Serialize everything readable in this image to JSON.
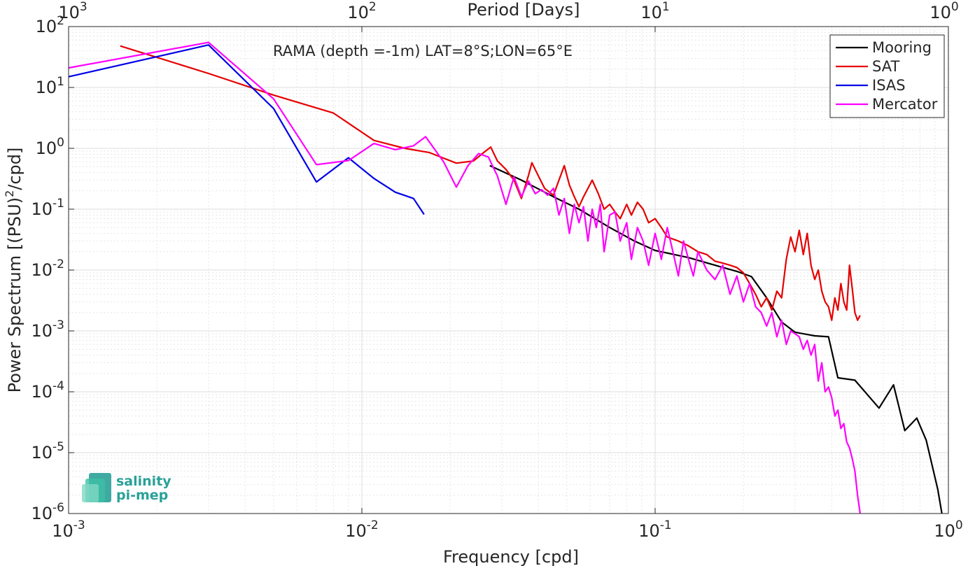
{
  "chart_data": {
    "type": "line",
    "title": "RAMA (depth =-1m) LAT=8°S;LON=65°E",
    "xlabel": "Frequency [cpd]",
    "ylabel_main": "Power Spectrum [(PSU)",
    "ylabel_sup": "2",
    "ylabel_tail": "/cpd]",
    "top_xlabel": "Period [Days]",
    "x_scale": "log",
    "y_scale": "log",
    "xlim": [
      0.001,
      1
    ],
    "ylim": [
      1e-06,
      100
    ],
    "x_ticks": [
      0.001,
      0.01,
      0.1,
      1
    ],
    "x_tick_base": [
      "10",
      "10",
      "10",
      "10"
    ],
    "x_tick_exp": [
      "-3",
      "-2",
      "-1",
      "0"
    ],
    "y_ticks": [
      1e-06,
      1e-05,
      0.0001,
      0.001,
      0.01,
      0.1,
      1,
      10,
      100
    ],
    "y_tick_base": [
      "10",
      "10",
      "10",
      "10",
      "10",
      "10",
      "10",
      "10",
      "10"
    ],
    "y_tick_exp": [
      "-6",
      "-5",
      "-4",
      "-3",
      "-2",
      "-1",
      "0",
      "1",
      "2"
    ],
    "top_ticks_freq": [
      0.001,
      0.01,
      0.1,
      1
    ],
    "top_tick_base": [
      "10",
      "10",
      "10",
      "10"
    ],
    "top_tick_exp": [
      "3",
      "2",
      "1",
      "0"
    ],
    "grid": true,
    "legend_position": "top-right",
    "series": [
      {
        "name": "Mooring",
        "color": "#000000",
        "points": [
          [
            0.0273,
            0.52
          ],
          [
            0.035,
            0.3
          ],
          [
            0.045,
            0.16
          ],
          [
            0.055,
            0.1
          ],
          [
            0.07,
            0.05
          ],
          [
            0.085,
            0.03
          ],
          [
            0.1,
            0.021
          ],
          [
            0.13,
            0.016
          ],
          [
            0.16,
            0.012
          ],
          [
            0.19,
            0.0095
          ],
          [
            0.213,
            0.0078
          ],
          [
            0.24,
            0.0035
          ],
          [
            0.27,
            0.0014
          ],
          [
            0.3,
            0.00095
          ],
          [
            0.35,
            0.00083
          ],
          [
            0.39,
            0.0008
          ],
          [
            0.42,
            0.00017
          ],
          [
            0.48,
            0.000155
          ],
          [
            0.58,
            5.4e-05
          ],
          [
            0.65,
            0.00013
          ],
          [
            0.71,
            2.3e-05
          ],
          [
            0.78,
            3.7e-05
          ],
          [
            0.84,
            1.6e-05
          ],
          [
            0.92,
            2.5e-06
          ],
          [
            0.95,
            1e-06
          ]
        ]
      },
      {
        "name": "SAT",
        "color": "#e60000",
        "points": [
          [
            0.0015,
            48
          ],
          [
            0.003,
            17
          ],
          [
            0.005,
            7.5
          ],
          [
            0.008,
            3.8
          ],
          [
            0.011,
            1.35
          ],
          [
            0.014,
            1.0
          ],
          [
            0.017,
            0.85
          ],
          [
            0.021,
            0.57
          ],
          [
            0.024,
            0.62
          ],
          [
            0.026,
            0.85
          ],
          [
            0.0275,
            1.05
          ],
          [
            0.029,
            0.62
          ],
          [
            0.031,
            0.45
          ],
          [
            0.033,
            0.3
          ],
          [
            0.035,
            0.15
          ],
          [
            0.037,
            0.36
          ],
          [
            0.038,
            0.58
          ],
          [
            0.04,
            0.35
          ],
          [
            0.042,
            0.22
          ],
          [
            0.045,
            0.17
          ],
          [
            0.047,
            0.3
          ],
          [
            0.049,
            0.52
          ],
          [
            0.051,
            0.25
          ],
          [
            0.053,
            0.16
          ],
          [
            0.055,
            0.11
          ],
          [
            0.057,
            0.16
          ],
          [
            0.059,
            0.22
          ],
          [
            0.061,
            0.3
          ],
          [
            0.064,
            0.18
          ],
          [
            0.067,
            0.1
          ],
          [
            0.07,
            0.12
          ],
          [
            0.073,
            0.09
          ],
          [
            0.076,
            0.07
          ],
          [
            0.08,
            0.12
          ],
          [
            0.083,
            0.08
          ],
          [
            0.087,
            0.13
          ],
          [
            0.091,
            0.1
          ],
          [
            0.095,
            0.06
          ],
          [
            0.1,
            0.07
          ],
          [
            0.105,
            0.05
          ],
          [
            0.11,
            0.035
          ],
          [
            0.12,
            0.03
          ],
          [
            0.13,
            0.025
          ],
          [
            0.14,
            0.02
          ],
          [
            0.15,
            0.018
          ],
          [
            0.16,
            0.014
          ],
          [
            0.17,
            0.013
          ],
          [
            0.18,
            0.012
          ],
          [
            0.19,
            0.011
          ],
          [
            0.2,
            0.009
          ],
          [
            0.21,
            0.006
          ],
          [
            0.22,
            0.004
          ],
          [
            0.23,
            0.0025
          ],
          [
            0.24,
            0.0035
          ],
          [
            0.25,
            0.0022
          ],
          [
            0.26,
            0.0045
          ],
          [
            0.27,
            0.0035
          ],
          [
            0.28,
            0.015
          ],
          [
            0.29,
            0.035
          ],
          [
            0.3,
            0.02
          ],
          [
            0.31,
            0.045
          ],
          [
            0.32,
            0.018
          ],
          [
            0.33,
            0.04
          ],
          [
            0.34,
            0.012
          ],
          [
            0.35,
            0.007
          ],
          [
            0.36,
            0.01
          ],
          [
            0.37,
            0.0045
          ],
          [
            0.38,
            0.003
          ],
          [
            0.39,
            0.0025
          ],
          [
            0.4,
            0.0015
          ],
          [
            0.41,
            0.0035
          ],
          [
            0.42,
            0.0022
          ],
          [
            0.43,
            0.006
          ],
          [
            0.44,
            0.003
          ],
          [
            0.45,
            0.0022
          ],
          [
            0.46,
            0.012
          ],
          [
            0.47,
            0.005
          ],
          [
            0.48,
            0.002
          ],
          [
            0.49,
            0.0015
          ],
          [
            0.5,
            0.0018
          ]
        ]
      },
      {
        "name": "ISAS",
        "color": "#0000e6",
        "points": [
          [
            0.001,
            15
          ],
          [
            0.003,
            50
          ],
          [
            0.005,
            4.5
          ],
          [
            0.007,
            0.28
          ],
          [
            0.009,
            0.7
          ],
          [
            0.011,
            0.32
          ],
          [
            0.013,
            0.19
          ],
          [
            0.015,
            0.15
          ],
          [
            0.0163,
            0.082
          ]
        ]
      },
      {
        "name": "Mercator",
        "color": "#ff00ff",
        "points": [
          [
            0.001,
            21
          ],
          [
            0.003,
            55
          ],
          [
            0.005,
            6.5
          ],
          [
            0.007,
            0.54
          ],
          [
            0.009,
            0.63
          ],
          [
            0.011,
            1.2
          ],
          [
            0.013,
            0.95
          ],
          [
            0.015,
            1.1
          ],
          [
            0.0165,
            1.55
          ],
          [
            0.019,
            0.6
          ],
          [
            0.021,
            0.23
          ],
          [
            0.023,
            0.52
          ],
          [
            0.025,
            0.82
          ],
          [
            0.027,
            0.72
          ],
          [
            0.029,
            0.35
          ],
          [
            0.031,
            0.12
          ],
          [
            0.033,
            0.34
          ],
          [
            0.035,
            0.16
          ],
          [
            0.037,
            0.29
          ],
          [
            0.039,
            0.18
          ],
          [
            0.041,
            0.21
          ],
          [
            0.043,
            0.17
          ],
          [
            0.045,
            0.22
          ],
          [
            0.047,
            0.08
          ],
          [
            0.049,
            0.15
          ],
          [
            0.051,
            0.04
          ],
          [
            0.053,
            0.12
          ],
          [
            0.055,
            0.06
          ],
          [
            0.057,
            0.11
          ],
          [
            0.059,
            0.03
          ],
          [
            0.061,
            0.1
          ],
          [
            0.063,
            0.05
          ],
          [
            0.065,
            0.12
          ],
          [
            0.067,
            0.02
          ],
          [
            0.07,
            0.08
          ],
          [
            0.073,
            0.09
          ],
          [
            0.076,
            0.03
          ],
          [
            0.08,
            0.06
          ],
          [
            0.083,
            0.015
          ],
          [
            0.087,
            0.05
          ],
          [
            0.091,
            0.03
          ],
          [
            0.095,
            0.012
          ],
          [
            0.1,
            0.04
          ],
          [
            0.105,
            0.015
          ],
          [
            0.11,
            0.05
          ],
          [
            0.115,
            0.02
          ],
          [
            0.12,
            0.008
          ],
          [
            0.125,
            0.03
          ],
          [
            0.13,
            0.015
          ],
          [
            0.135,
            0.008
          ],
          [
            0.14,
            0.02
          ],
          [
            0.15,
            0.01
          ],
          [
            0.16,
            0.007
          ],
          [
            0.17,
            0.012
          ],
          [
            0.18,
            0.004
          ],
          [
            0.19,
            0.008
          ],
          [
            0.2,
            0.003
          ],
          [
            0.21,
            0.006
          ],
          [
            0.22,
            0.0025
          ],
          [
            0.23,
            0.002
          ],
          [
            0.24,
            0.0012
          ],
          [
            0.25,
            0.002
          ],
          [
            0.26,
            0.0008
          ],
          [
            0.27,
            0.0015
          ],
          [
            0.28,
            0.0006
          ],
          [
            0.29,
            0.001
          ],
          [
            0.3,
            0.0009
          ],
          [
            0.31,
            0.0008
          ],
          [
            0.32,
            0.0005
          ],
          [
            0.33,
            0.0007
          ],
          [
            0.34,
            0.0004
          ],
          [
            0.35,
            0.0006
          ],
          [
            0.36,
            0.00015
          ],
          [
            0.37,
            0.0003
          ],
          [
            0.38,
            0.0001
          ],
          [
            0.39,
            0.00012
          ],
          [
            0.4,
            8e-05
          ],
          [
            0.41,
            4e-05
          ],
          [
            0.42,
            5e-05
          ],
          [
            0.43,
            2.5e-05
          ],
          [
            0.44,
            3e-05
          ],
          [
            0.45,
            1.5e-05
          ],
          [
            0.46,
            1.2e-05
          ],
          [
            0.47,
            8e-06
          ],
          [
            0.48,
            5e-06
          ],
          [
            0.49,
            2e-06
          ],
          [
            0.5,
            1e-06
          ]
        ]
      }
    ],
    "logo": {
      "line1": "salinity",
      "line2": "pi-mep"
    }
  }
}
